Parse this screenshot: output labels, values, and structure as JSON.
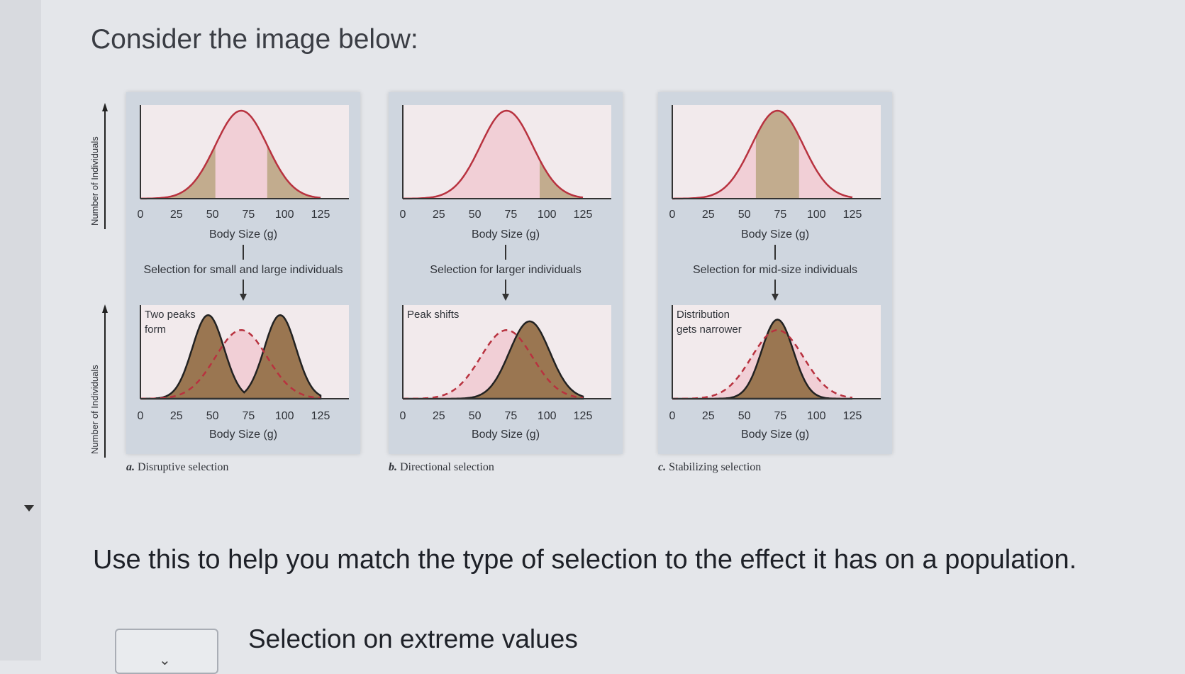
{
  "heading": "Consider the image below:",
  "instruction": "Use this to help you match the type of selection to the effect it has on a population.",
  "dropdown": {
    "selected": ""
  },
  "match_items": [
    "Selection on extreme values"
  ],
  "figure": {
    "ylabel": "Number of Individuals",
    "xlabel": "Body Size (g)",
    "ticks": [
      "0",
      "25",
      "50",
      "75",
      "100",
      "125"
    ],
    "panels": [
      {
        "letter": "a.",
        "caption": "Disruptive selection",
        "selection": "Selection for small and large individuals",
        "annotation": "Two peaks form",
        "annotation_lines": [
          "Two peaks",
          "form"
        ]
      },
      {
        "letter": "b.",
        "caption": "Directional selection",
        "selection": "Selection for larger individuals",
        "annotation": "Peak shifts",
        "annotation_lines": [
          "Peak shifts"
        ]
      },
      {
        "letter": "c.",
        "caption": "Stabilizing selection",
        "selection": "Selection for mid-size individuals",
        "annotation": "Distribution gets narrower",
        "annotation_lines": [
          "Distribution",
          "gets narrower"
        ]
      }
    ]
  },
  "chart_data": [
    {
      "type": "area",
      "title": "Disruptive selection",
      "xlabel": "Body Size (g)",
      "ylabel": "Number of Individuals",
      "xlim": [
        0,
        125
      ],
      "before": {
        "mean": 70,
        "sd": 18,
        "selected_ranges": [
          [
            20,
            52
          ],
          [
            88,
            120
          ]
        ]
      },
      "after": {
        "peaks": [
          47,
          97
        ],
        "dashed_original_mean": 70
      }
    },
    {
      "type": "area",
      "title": "Directional selection",
      "xlabel": "Body Size (g)",
      "ylabel": "Number of Individuals",
      "xlim": [
        0,
        125
      ],
      "before": {
        "mean": 72,
        "sd": 18,
        "selected_ranges": [
          [
            95,
            125
          ]
        ]
      },
      "after": {
        "mean": 88,
        "dashed_original_mean": 72
      }
    },
    {
      "type": "area",
      "title": "Stabilizing selection",
      "xlabel": "Body Size (g)",
      "ylabel": "Number of Individuals",
      "xlim": [
        0,
        125
      ],
      "before": {
        "mean": 73,
        "sd": 18,
        "selected_ranges": [
          [
            58,
            88
          ]
        ]
      },
      "after": {
        "mean": 73,
        "dashed_original_mean": 73,
        "narrower": true
      }
    }
  ]
}
